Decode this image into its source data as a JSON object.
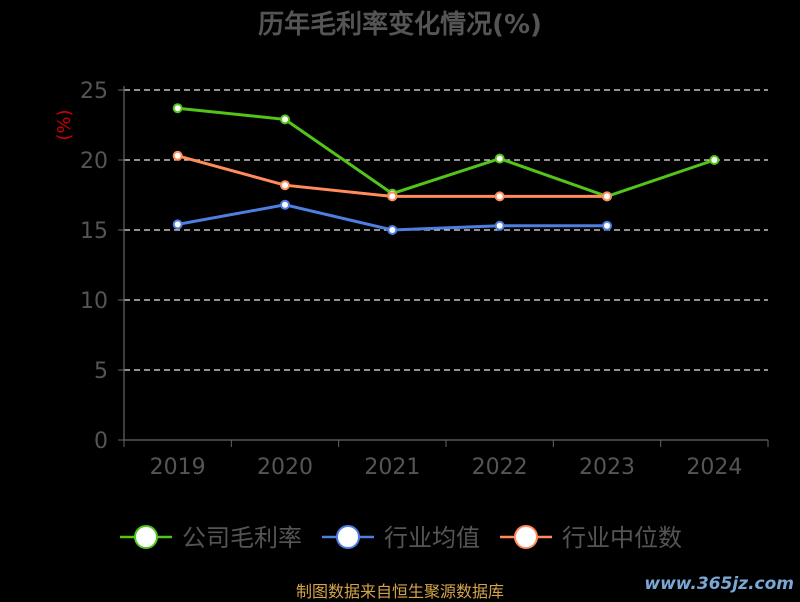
{
  "chart_data": {
    "type": "line",
    "title": "历年毛利率变化情况(%)",
    "ylabel": "(%)",
    "ylim": [
      0,
      25
    ],
    "yticks": [
      0,
      5,
      10,
      15,
      20,
      25
    ],
    "categories": [
      "2019",
      "2020",
      "2021",
      "2022",
      "2023",
      "2024"
    ],
    "grid": true,
    "legend_placement": "bottom",
    "series": [
      {
        "name": "公司毛利率",
        "color": "#52c41a",
        "values": [
          23.7,
          22.9,
          17.6,
          20.1,
          17.4,
          20.0
        ]
      },
      {
        "name": "行业均值",
        "color": "#4e7fe0",
        "values": [
          15.4,
          16.8,
          15.0,
          15.3,
          15.3,
          null
        ]
      },
      {
        "name": "行业中位数",
        "color": "#ff8c5a",
        "values": [
          20.3,
          18.2,
          17.4,
          17.4,
          17.4,
          null
        ]
      }
    ]
  },
  "footer": {
    "source": "制图数据来自恒生聚源数据库",
    "watermark": "www.365jz.com"
  }
}
